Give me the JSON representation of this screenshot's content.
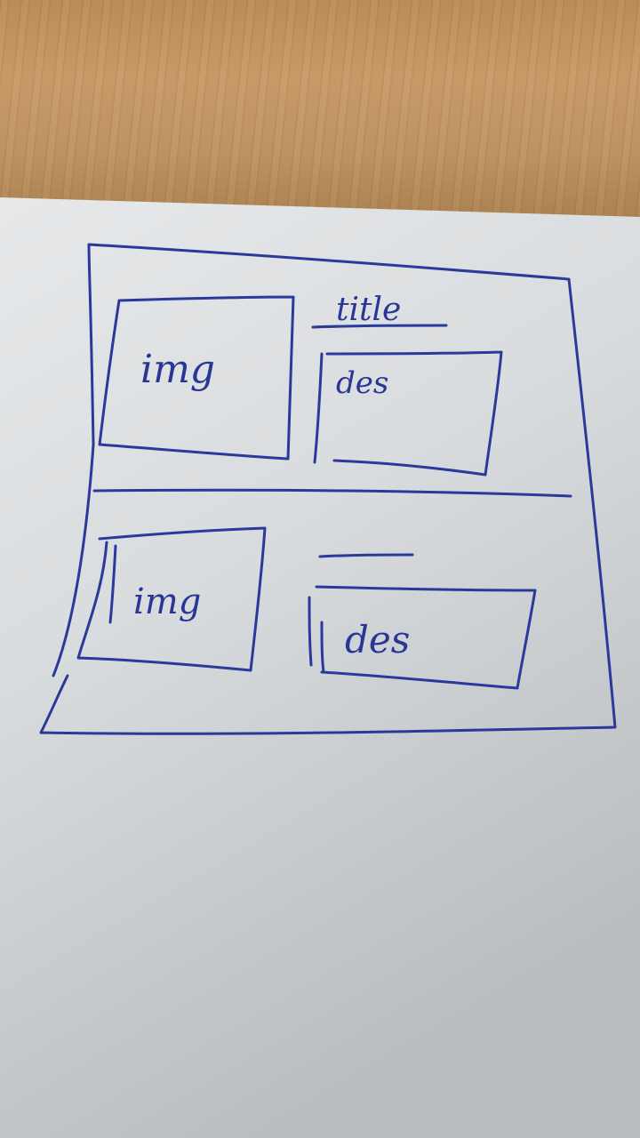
{
  "sketch": {
    "rows": [
      {
        "image_label": "img",
        "title_label": "title",
        "description_label": "des"
      },
      {
        "image_label": "img",
        "title_label": "",
        "description_label": "des"
      }
    ]
  },
  "colors": {
    "ink": "#2b3a9a",
    "paper": "#d6d9dc",
    "desk": "#c79a67"
  }
}
